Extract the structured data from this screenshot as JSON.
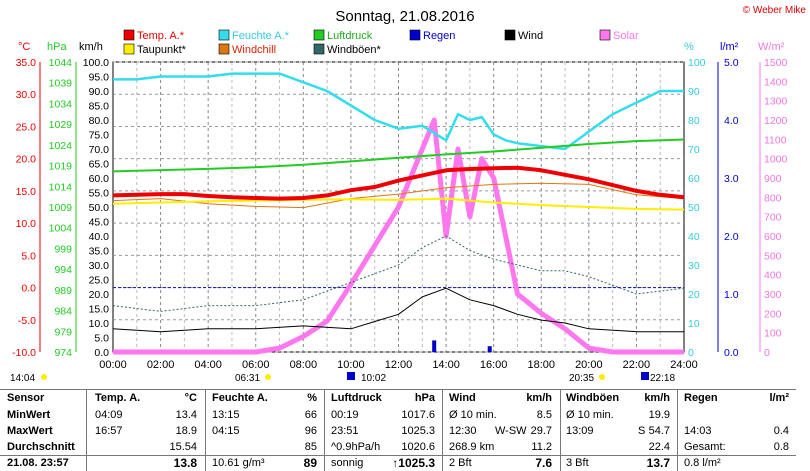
{
  "header": {
    "title": "Sonntag, 21.08.2016",
    "copyright": "© Weber Mike"
  },
  "legend": [
    {
      "label": "Temp. A.*",
      "color": "#ee0000"
    },
    {
      "label": "Taupunkt*",
      "color": "#ffee00"
    },
    {
      "label": "Feuchte A.*",
      "color": "#33ddee"
    },
    {
      "label": "Windchill",
      "color": "#dd7711"
    },
    {
      "label": "Luftdruck",
      "color": "#22cc22"
    },
    {
      "label": "Windböen*",
      "color": "#336666"
    },
    {
      "label": "Regen",
      "color": "#0000cc"
    },
    {
      "label": "Wind",
      "color": "#000000"
    },
    {
      "label": "Solar",
      "color": "#ff77ee"
    }
  ],
  "axis_units": {
    "temp": "°C",
    "press": "hPa",
    "wind": "km/h",
    "hum": "%",
    "rain": "l/m²",
    "solar": "W/m²"
  },
  "chart_data": {
    "type": "line",
    "title": "Sonntag, 21.08.2016",
    "x_ticks": [
      "00:00",
      "02:00",
      "04:00",
      "06:00",
      "08:00",
      "10:00",
      "12:00",
      "14:00",
      "16:00",
      "18:00",
      "20:00",
      "22:00",
      "24:00"
    ],
    "x_range_hours": [
      0,
      24
    ],
    "axes": {
      "temp": {
        "range": [
          -10,
          35
        ],
        "ticks": [
          "35.0",
          "30.0",
          "25.0",
          "20.0",
          "15.0",
          "10.0",
          "5.0",
          "0.0",
          "-5.0",
          "-10.0"
        ]
      },
      "pressure": {
        "range": [
          974,
          1044
        ],
        "ticks": [
          "1044",
          "1039",
          "1034",
          "1029",
          "1024",
          "1019",
          "1014",
          "1009",
          "1004",
          "999",
          "994",
          "989",
          "984",
          "979",
          "974"
        ]
      },
      "wind": {
        "range": [
          0,
          100
        ],
        "ticks": [
          "100.0",
          "95.0",
          "90.0",
          "85.0",
          "80.0",
          "75.0",
          "70.0",
          "65.0",
          "60.0",
          "55.0",
          "50.0",
          "45.0",
          "40.0",
          "35.0",
          "30.0",
          "25.0",
          "20.0",
          "15.0",
          "10.0",
          "5.0",
          "0.0"
        ]
      },
      "humidity": {
        "range": [
          0,
          100
        ],
        "ticks": [
          "100",
          "90",
          "80",
          "70",
          "60",
          "50",
          "40",
          "30",
          "20",
          "10",
          "0"
        ]
      },
      "rain": {
        "range": [
          0,
          5
        ],
        "ticks": [
          "5.0",
          "4.0",
          "3.0",
          "2.0",
          "1.0",
          "0.0"
        ]
      },
      "solar": {
        "range": [
          0,
          1500
        ],
        "ticks": [
          "1500",
          "1400",
          "1300",
          "1200",
          "1100",
          "1000",
          "900",
          "800",
          "700",
          "600",
          "500",
          "400",
          "300",
          "200",
          "100",
          "0"
        ]
      }
    },
    "series": [
      {
        "name": "Temp. A.*",
        "axis": "temp",
        "x": [
          0,
          1,
          2,
          3,
          4,
          5,
          6,
          7,
          8,
          9,
          10,
          11,
          12,
          13,
          14,
          15,
          16,
          17,
          18,
          19,
          20,
          21,
          22,
          23,
          24
        ],
        "values": [
          14.3,
          14.4,
          14.5,
          14.5,
          14.2,
          14.0,
          13.9,
          13.8,
          13.9,
          14.3,
          15.1,
          15.6,
          16.6,
          17.4,
          18.2,
          18.4,
          18.5,
          18.6,
          18.2,
          17.5,
          16.8,
          15.9,
          15.0,
          14.4,
          14.0
        ]
      },
      {
        "name": "Taupunkt*",
        "axis": "temp",
        "x": [
          0,
          2,
          4,
          6,
          8,
          10,
          12,
          14,
          16,
          18,
          20,
          22,
          24
        ],
        "values": [
          13.0,
          13.2,
          13.4,
          13.5,
          13.6,
          13.7,
          13.6,
          13.8,
          13.2,
          12.8,
          12.5,
          12.2,
          12.1
        ]
      },
      {
        "name": "Windchill",
        "axis": "temp",
        "x": [
          0,
          2,
          4,
          6,
          8,
          10,
          12,
          14,
          16,
          18,
          20,
          22,
          24
        ],
        "values": [
          13.5,
          13.8,
          13.0,
          12.6,
          12.4,
          13.8,
          14.5,
          15.5,
          16.0,
          16.2,
          16.0,
          14.4,
          13.8
        ]
      },
      {
        "name": "Feuchte A.*",
        "axis": "humidity",
        "x": [
          0,
          1,
          2,
          3,
          4,
          5,
          6,
          7,
          8,
          9,
          10,
          11,
          12,
          13,
          14,
          14.5,
          15,
          15.5,
          16,
          16.5,
          17,
          18,
          19,
          20,
          21,
          22,
          23,
          24
        ],
        "values": [
          94,
          94,
          95,
          95,
          95,
          96,
          96,
          96,
          93,
          90,
          85,
          80,
          77,
          78,
          73,
          82,
          80,
          81,
          75,
          73,
          72,
          71,
          70,
          76,
          82,
          86,
          90,
          90
        ]
      },
      {
        "name": "Luftdruck",
        "axis": "pressure",
        "x": [
          0,
          2,
          4,
          6,
          8,
          10,
          12,
          14,
          16,
          18,
          20,
          22,
          24
        ],
        "values": [
          1017.6,
          1017.9,
          1018.2,
          1018.6,
          1019.2,
          1020.0,
          1020.9,
          1021.7,
          1022.4,
          1023.3,
          1024.2,
          1024.9,
          1025.3
        ]
      },
      {
        "name": "Wind",
        "axis": "wind",
        "x": [
          0,
          2,
          4,
          6,
          8,
          10,
          12,
          13,
          14,
          15,
          16,
          17,
          18,
          19,
          20,
          22,
          24
        ],
        "values": [
          8,
          7,
          8,
          8,
          9,
          8,
          13,
          19,
          22,
          18,
          16,
          13,
          11,
          10,
          8,
          7,
          7
        ]
      },
      {
        "name": "Windböen*",
        "axis": "wind",
        "x": [
          0,
          2,
          4,
          6,
          8,
          10,
          12,
          13,
          14,
          15,
          16,
          17,
          18,
          19,
          20,
          22,
          24
        ],
        "values": [
          16,
          14,
          16,
          16,
          18,
          24,
          30,
          36,
          40,
          35,
          32,
          30,
          28,
          28,
          26,
          20,
          22
        ]
      },
      {
        "name": "Solar",
        "axis": "solar",
        "x": [
          0,
          5,
          6,
          7,
          8,
          9,
          10,
          11,
          12,
          13,
          13.5,
          14,
          14.5,
          15,
          15.5,
          16,
          17,
          18,
          19,
          20,
          21,
          22,
          23,
          24
        ],
        "values": [
          0,
          0,
          0,
          20,
          80,
          160,
          350,
          550,
          750,
          1050,
          1200,
          600,
          1050,
          700,
          1000,
          900,
          300,
          200,
          120,
          20,
          0,
          0,
          0,
          0
        ]
      }
    ],
    "rain_marks": [
      {
        "time": "13:30",
        "value": 0.2
      },
      {
        "time": "15:50",
        "value": 0.1
      }
    ]
  },
  "markers": {
    "left_time": "14:04",
    "sunrise": "06:31",
    "sunrise_moon": "10:02",
    "sunset": "20:35",
    "moonset": "22:18"
  },
  "table": {
    "headers": [
      "Sensor",
      "Temp. A.",
      "°C",
      "Feuchte A.",
      "%",
      "Luftdruck",
      "hPa",
      "Wind",
      "km/h",
      "Windböen",
      "km/h",
      "Regen",
      "l/m²"
    ],
    "rows": [
      {
        "label": "MinWert",
        "t_time": "04:09",
        "t_val": "13.4",
        "h_time": "13:15",
        "h_val": "66",
        "p_time": "00:19",
        "p_val": "1017.6",
        "w_lab": "Ø 10 min.",
        "w_val": "8.5",
        "g_lab": "Ø 10 min.",
        "g_val": "19.9",
        "r_lab": "",
        "r_val": ""
      },
      {
        "label": "MaxWert",
        "t_time": "16:57",
        "t_val": "18.9",
        "h_time": "04:15",
        "h_val": "96",
        "p_time": "23:51",
        "p_val": "1025.3",
        "w_lab": "12:30",
        "w_dir": "W-SW",
        "w_val": "29.7",
        "g_lab": "13:09",
        "g_dir": "S",
        "g_val": "54.7",
        "r_lab": "14:03",
        "r_val": "0.4"
      },
      {
        "label": "Durchschnitt",
        "t_time": "",
        "t_val": "15.54",
        "h_time": "",
        "h_val": "85",
        "p_time": "^0.9hPa/h",
        "p_val": "1020.6",
        "w_lab": "268.9 km",
        "w_val": "11.2",
        "g_lab": "",
        "g_val": "22.4",
        "r_lab": "Gesamt:",
        "r_val": "0.8"
      },
      {
        "label": "21.08. 23:57",
        "t_time": "",
        "t_val": "13.8",
        "h_time": "10.61 g/m³",
        "h_val": "89",
        "p_time": "sonnig",
        "p_val": "↑1025.3",
        "w_lab": "2 Bft",
        "w_val": "7.6",
        "g_lab": "3 Bft",
        "g_val": "13.7",
        "r_lab": "0.8 l/m²",
        "r_val": ""
      }
    ]
  }
}
